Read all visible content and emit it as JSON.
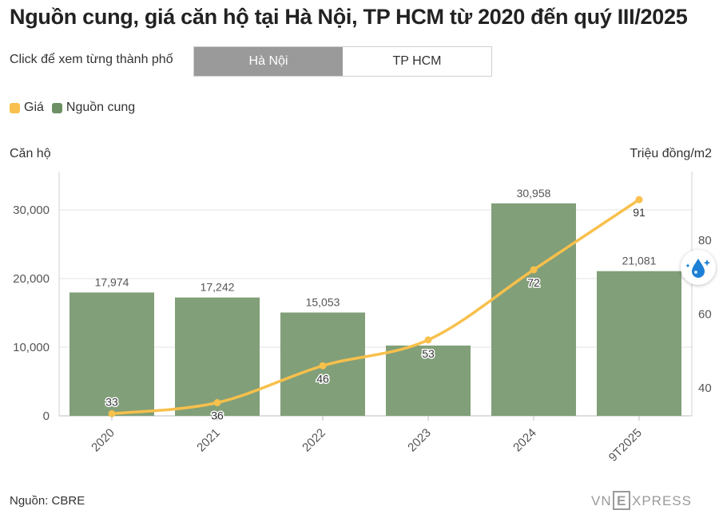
{
  "title": "Nguồn cung, giá căn hộ tại Hà Nội, TP HCM từ 2020 đến quý III/2025",
  "hint": "Click để xem từng thành phố",
  "tabs": [
    {
      "label": "Hà Nội",
      "active": true
    },
    {
      "label": "TP HCM",
      "active": false
    }
  ],
  "legend": [
    {
      "label": "Giá",
      "color": "#f8c04c"
    },
    {
      "label": "Nguồn cung",
      "color": "#6d8f64"
    }
  ],
  "chart_data": {
    "type": "bar",
    "categories": [
      "2020",
      "2021",
      "2022",
      "2023",
      "2024",
      "9T2025"
    ],
    "series": [
      {
        "name": "Nguồn cung",
        "type": "bar",
        "axis": "left",
        "color": "#819f79",
        "values": [
          17974,
          17242,
          15053,
          10240,
          30958,
          21081
        ],
        "labels": [
          "17,974",
          "17,242",
          "15,053",
          "",
          "30,958",
          "21,081"
        ]
      },
      {
        "name": "Giá",
        "type": "line",
        "axis": "right",
        "color": "#f8c04c",
        "values": [
          33,
          36,
          46,
          53,
          72,
          91
        ],
        "labels": [
          "33",
          "36",
          "46",
          "53",
          "72",
          "91"
        ]
      }
    ],
    "ylabel": "Căn hộ",
    "y2label": "Triệu đồng/m2",
    "ylim": [
      0,
      30000
    ],
    "yticks": [
      0,
      10000,
      20000,
      30000
    ],
    "ytick_labels": [
      "0",
      "10,000",
      "20,000",
      "30,000"
    ],
    "y2ticks": [
      40,
      60,
      80
    ],
    "y2tick_labels": [
      "40",
      "60",
      "80"
    ],
    "grid": true,
    "legend_position": "top-left"
  },
  "source": "Nguồn: CBRE",
  "brand": {
    "left": "VN",
    "mid": "E",
    "right": "XPRESS"
  }
}
